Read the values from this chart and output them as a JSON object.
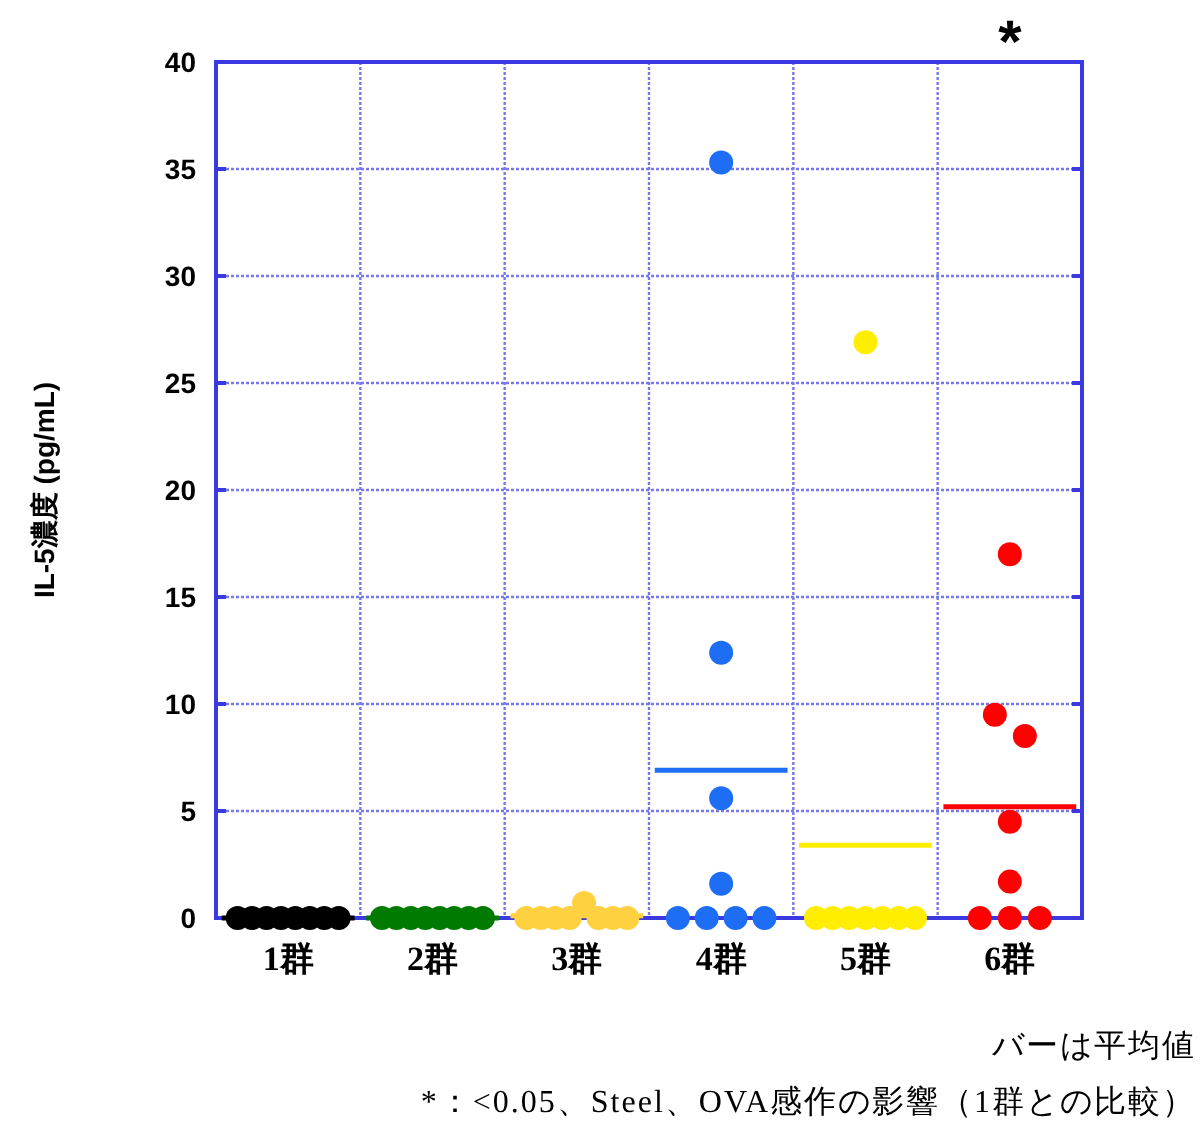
{
  "chart_data": {
    "type": "scatter",
    "categories": [
      "1群",
      "2群",
      "3群",
      "4群",
      "5群",
      "6群"
    ],
    "ylabel": "IL-5濃度 (pg/mL)",
    "ylim": [
      0,
      40
    ],
    "yticks": [
      0,
      5,
      10,
      15,
      20,
      25,
      30,
      35,
      40
    ],
    "grid": true,
    "marker": "circle",
    "series": [
      {
        "color": "#000000",
        "x": [
          "1群",
          "1群",
          "1群",
          "1群",
          "1群",
          "1群",
          "1群",
          "1群"
        ],
        "values": [
          0,
          0,
          0,
          0,
          0,
          0,
          0,
          0
        ]
      },
      {
        "color": "#007a00",
        "x": [
          "2群",
          "2群",
          "2群",
          "2群",
          "2群",
          "2群",
          "2群",
          "2群"
        ],
        "values": [
          0,
          0,
          0,
          0,
          0,
          0,
          0,
          0
        ]
      },
      {
        "color": "#ffd040",
        "x": [
          "3群",
          "3群",
          "3群",
          "3群",
          "3群",
          "3群",
          "3群",
          "3群"
        ],
        "values": [
          0,
          0,
          0,
          0,
          0.7,
          0,
          0,
          0
        ]
      },
      {
        "color": "#1e6ef5",
        "x": [
          "4群",
          "4群",
          "4群",
          "4群",
          "4群",
          "4群",
          "4群",
          "4群"
        ],
        "values": [
          35.3,
          12.4,
          5.6,
          1.6,
          0,
          0,
          0,
          0
        ]
      },
      {
        "color": "#ffee00",
        "x": [
          "5群",
          "5群",
          "5群",
          "5群",
          "5群",
          "5群",
          "5群",
          "5群"
        ],
        "values": [
          26.9,
          0,
          0,
          0,
          0,
          0,
          0,
          0
        ]
      },
      {
        "color": "#ff0000",
        "x": [
          "6群",
          "6群",
          "6群",
          "6群",
          "6群",
          "6群",
          "6群",
          "6群"
        ],
        "values": [
          17,
          9.5,
          8.5,
          4.5,
          1.7,
          0,
          0,
          0
        ]
      },
      {
        "type": "box",
        "colors": [
          "#000000",
          "#007a00",
          "#ffd040",
          "#1e6ef5",
          "#ffee00",
          "#ff0000"
        ],
        "boxes": [
          {
            "low": 0,
            "q1": 0,
            "median": 0,
            "q3": 0,
            "high": 0
          },
          {
            "low": 0,
            "q1": 0,
            "median": 0,
            "q3": 0,
            "high": 0
          },
          {
            "low": 0.1,
            "q1": 0.1,
            "median": 0.1,
            "q3": 0.1,
            "high": 0.1
          },
          {
            "low": 6.9,
            "q1": 6.9,
            "median": 6.9,
            "q3": 6.9,
            "high": 6.9
          },
          {
            "low": 3.4,
            "q1": 3.4,
            "median": 3.4,
            "q3": 3.4,
            "high": 3.4
          },
          {
            "low": 5.2,
            "q1": 5.2,
            "median": 5.2,
            "q3": 5.2,
            "high": 5.2
          }
        ]
      }
    ],
    "annotations": [
      "*",
      "バーは平均値",
      "*：<0.05、Steel、OVA感作の影響（1群との比較）"
    ]
  }
}
